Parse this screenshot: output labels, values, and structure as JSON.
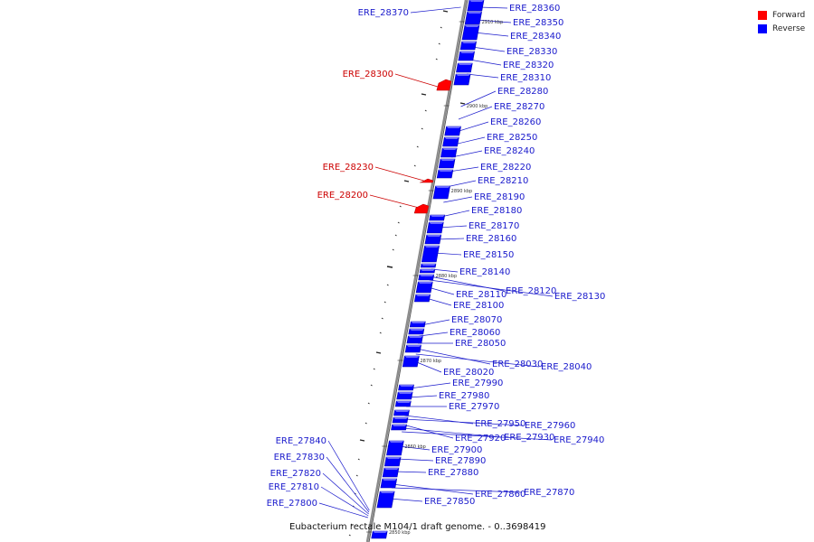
{
  "caption": "Eubacterium rectale M104/1 draft genome. - 0..3698419",
  "legend": [
    {
      "label": "Forward",
      "color": "#ff0000"
    },
    {
      "label": "Reverse",
      "color": "#0000ff"
    }
  ],
  "colors": {
    "forward": "#ff0000",
    "reverse": "#0000ff",
    "forward_label": "#cc0000",
    "reverse_label": "#1a1acc",
    "axis": "#888888"
  },
  "ticks": [
    "2910 kbp",
    "2900 kbp",
    "2890 kbp",
    "2880 kbp",
    "2870 kbp",
    "2860 kbp",
    "2850 kbp"
  ],
  "genes": [
    {
      "name": "ERE_28370",
      "strand": "reverse"
    },
    {
      "name": "ERE_28360",
      "strand": "reverse"
    },
    {
      "name": "ERE_28350",
      "strand": "reverse"
    },
    {
      "name": "ERE_28340",
      "strand": "reverse"
    },
    {
      "name": "ERE_28330",
      "strand": "reverse"
    },
    {
      "name": "ERE_28320",
      "strand": "reverse"
    },
    {
      "name": "ERE_28310",
      "strand": "reverse"
    },
    {
      "name": "ERE_28300",
      "strand": "forward"
    },
    {
      "name": "ERE_28280",
      "strand": "reverse"
    },
    {
      "name": "ERE_28270",
      "strand": "reverse"
    },
    {
      "name": "ERE_28260",
      "strand": "reverse"
    },
    {
      "name": "ERE_28250",
      "strand": "reverse"
    },
    {
      "name": "ERE_28240",
      "strand": "reverse"
    },
    {
      "name": "ERE_28230",
      "strand": "forward"
    },
    {
      "name": "ERE_28220",
      "strand": "reverse"
    },
    {
      "name": "ERE_28210",
      "strand": "reverse"
    },
    {
      "name": "ERE_28200",
      "strand": "forward"
    },
    {
      "name": "ERE_28190",
      "strand": "reverse"
    },
    {
      "name": "ERE_28180",
      "strand": "reverse"
    },
    {
      "name": "ERE_28170",
      "strand": "reverse"
    },
    {
      "name": "ERE_28160",
      "strand": "reverse"
    },
    {
      "name": "ERE_28150",
      "strand": "reverse"
    },
    {
      "name": "ERE_28140",
      "strand": "reverse"
    },
    {
      "name": "ERE_28120",
      "strand": "reverse"
    },
    {
      "name": "ERE_28130",
      "strand": "reverse"
    },
    {
      "name": "ERE_28110",
      "strand": "reverse"
    },
    {
      "name": "ERE_28100",
      "strand": "reverse"
    },
    {
      "name": "ERE_28070",
      "strand": "reverse"
    },
    {
      "name": "ERE_28060",
      "strand": "reverse"
    },
    {
      "name": "ERE_28050",
      "strand": "reverse"
    },
    {
      "name": "ERE_28030",
      "strand": "reverse"
    },
    {
      "name": "ERE_28040",
      "strand": "reverse"
    },
    {
      "name": "ERE_28020",
      "strand": "reverse"
    },
    {
      "name": "ERE_27990",
      "strand": "reverse"
    },
    {
      "name": "ERE_27980",
      "strand": "reverse"
    },
    {
      "name": "ERE_27970",
      "strand": "reverse"
    },
    {
      "name": "ERE_27950",
      "strand": "reverse"
    },
    {
      "name": "ERE_27960",
      "strand": "reverse"
    },
    {
      "name": "ERE_27920",
      "strand": "reverse"
    },
    {
      "name": "ERE_27930",
      "strand": "reverse"
    },
    {
      "name": "ERE_27940",
      "strand": "reverse"
    },
    {
      "name": "ERE_27900",
      "strand": "reverse"
    },
    {
      "name": "ERE_27890",
      "strand": "reverse"
    },
    {
      "name": "ERE_27880",
      "strand": "reverse"
    },
    {
      "name": "ERE_27860",
      "strand": "reverse"
    },
    {
      "name": "ERE_27870",
      "strand": "reverse"
    },
    {
      "name": "ERE_27850",
      "strand": "reverse"
    },
    {
      "name": "ERE_27840",
      "strand": "reverse"
    },
    {
      "name": "ERE_27830",
      "strand": "reverse"
    },
    {
      "name": "ERE_27820",
      "strand": "reverse"
    },
    {
      "name": "ERE_27810",
      "strand": "reverse"
    },
    {
      "name": "ERE_27800",
      "strand": "reverse"
    }
  ]
}
